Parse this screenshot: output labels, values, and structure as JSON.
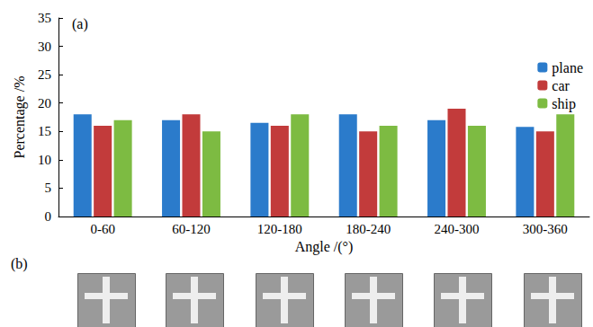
{
  "chart_data": {
    "type": "bar",
    "categories": [
      "0-60",
      "60-120",
      "120-180",
      "180-240",
      "240-300",
      "300-360"
    ],
    "series": [
      {
        "name": "plane",
        "color": "#2b7bcb",
        "values": [
          18,
          17,
          16.5,
          18,
          17,
          15.8
        ]
      },
      {
        "name": "car",
        "color": "#c23b3b",
        "values": [
          16,
          18,
          16,
          15,
          19,
          15
        ]
      },
      {
        "name": "ship",
        "color": "#7dbb42",
        "values": [
          17,
          15,
          18,
          16,
          16,
          18
        ]
      }
    ],
    "x_label": "Angle /(°)",
    "y_label": "Percentage /%",
    "ylim": [
      0,
      35
    ],
    "yticks": [
      0,
      5,
      10,
      15,
      20,
      25,
      30,
      35
    ],
    "grid": false,
    "legend": "right",
    "annotations": [
      "(a)",
      "(b)"
    ]
  }
}
